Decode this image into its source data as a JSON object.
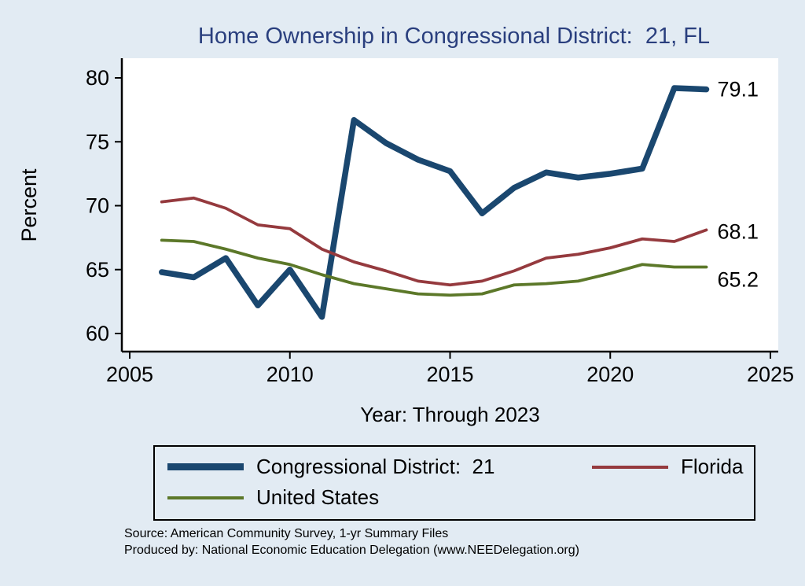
{
  "title": "Home Ownership in Congressional District:  21, FL",
  "chart_data": {
    "type": "line",
    "title": "Home Ownership in Congressional District:  21, FL",
    "xlabel": "Year: Through 2023",
    "ylabel": "Percent",
    "xlim": [
      2005,
      2025
    ],
    "ylim": [
      60,
      80
    ],
    "xticks": [
      2005,
      2010,
      2015,
      2020,
      2025
    ],
    "yticks": [
      60,
      65,
      70,
      75,
      80
    ],
    "grid": false,
    "legend_position": "bottom",
    "x": [
      2006,
      2007,
      2008,
      2009,
      2010,
      2011,
      2012,
      2013,
      2014,
      2015,
      2016,
      2017,
      2018,
      2019,
      2020,
      2021,
      2022,
      2023
    ],
    "series": [
      {
        "name": "Congressional District:  21",
        "color": "#1a476f",
        "width": 7.5,
        "values": [
          64.8,
          64.4,
          65.9,
          62.2,
          65.0,
          61.3,
          76.7,
          74.9,
          73.6,
          72.7,
          69.4,
          71.4,
          72.6,
          72.2,
          72.5,
          72.9,
          79.2,
          79.1
        ],
        "end_label": "79.1"
      },
      {
        "name": "Florida",
        "color": "#953a3e",
        "width": 3.8,
        "values": [
          70.3,
          70.6,
          69.8,
          68.5,
          68.2,
          66.6,
          65.6,
          64.9,
          64.1,
          63.8,
          64.1,
          64.9,
          65.9,
          66.2,
          66.7,
          67.4,
          67.2,
          68.1
        ],
        "end_label": "68.1"
      },
      {
        "name": "United States",
        "color": "#5c7829",
        "width": 3.8,
        "values": [
          67.3,
          67.2,
          66.6,
          65.9,
          65.4,
          64.6,
          63.9,
          63.5,
          63.1,
          63.0,
          63.1,
          63.8,
          63.9,
          64.1,
          64.7,
          65.4,
          65.2,
          65.2
        ],
        "end_label": "65.2"
      }
    ]
  },
  "footer": {
    "source": "Source: American Community Survey, 1-yr Summary Files",
    "produced_by": "Produced by: National Economic Education Delegation (www.NEEDelegation.org)"
  },
  "colors": {
    "background": "#e2ebf3",
    "plot_background": "#ffffff",
    "title": "#2a3f7e",
    "axis": "#000000",
    "district_line": "#1a476f",
    "florida_line": "#953a3e",
    "us_line": "#5c7829"
  }
}
